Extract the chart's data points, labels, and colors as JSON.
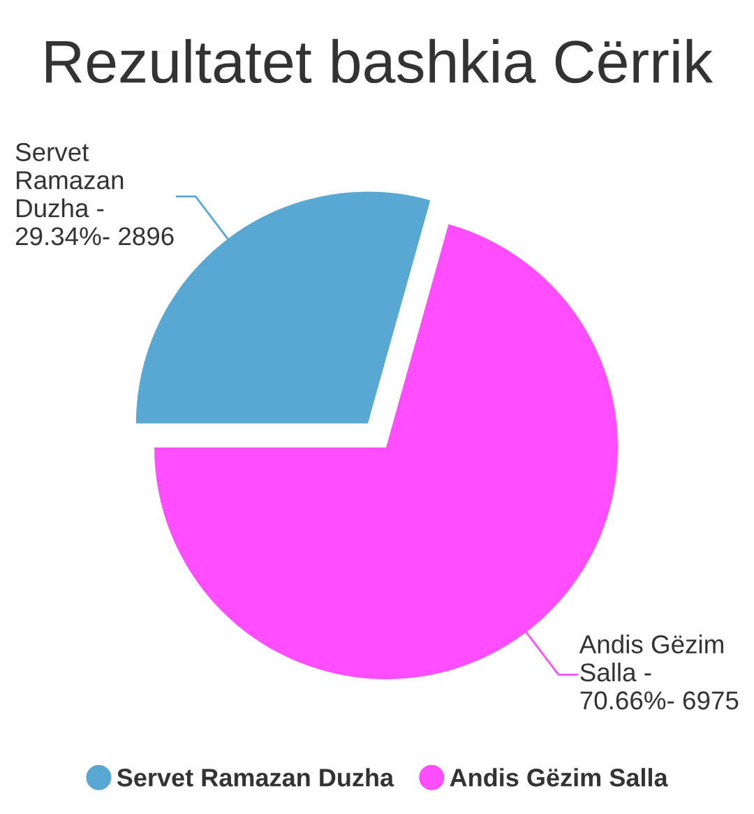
{
  "chart_data": {
    "type": "pie",
    "title": "Rezultatet bashkia Cërrik",
    "categories": [
      "Servet Ramazan Duzha",
      "Andis Gëzim Salla"
    ],
    "values": [
      29.34,
      70.66
    ],
    "colors": [
      "#59a8d3",
      "#ff4dff"
    ],
    "value_labels": [
      "Servet\nRamazan\nDuzha -\n29.34%- 2896",
      "Andis Gëzim\nSalla -\n70.66%- 6975"
    ],
    "legend": "bottom"
  }
}
